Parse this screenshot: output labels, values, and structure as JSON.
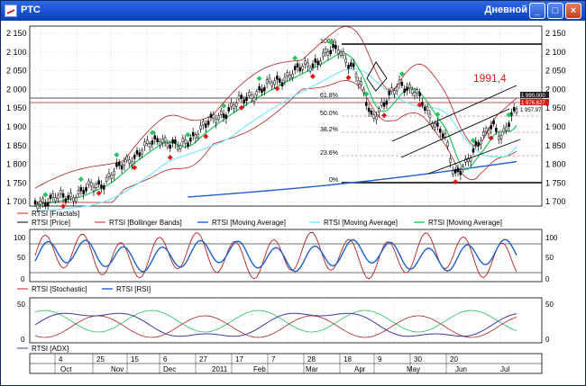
{
  "window": {
    "title": "РТС",
    "period_label": "Дневной",
    "minimize_label": "_",
    "maximize_label": "□",
    "close_label": "×"
  },
  "colors": {
    "title_bar": "#1d55d6",
    "price": "#000000",
    "bollinger": "#b22222",
    "ma_blue": "#1f5fd0",
    "ma_cyan": "#7fe6ff",
    "ma_green": "#22c55e",
    "fractal_up": "#22c55e",
    "fractal_down": "#dd1a1a",
    "stochastic": "#b22222",
    "rsi": "#1f5fd0",
    "adx": "#3a3aa0"
  },
  "main_panel": {
    "price_axis": [
      "2 150",
      "2 100",
      "2 050",
      "2 000",
      "1 950",
      "1 900",
      "1 850",
      "1 800",
      "1 750",
      "1 700"
    ],
    "fib_levels": [
      "100%",
      "61.8%",
      "50.0%",
      "38.2%",
      "23.6%",
      "0%"
    ],
    "annotation": "1991,4",
    "price_tags": [
      "1 990,000",
      "1 976,627",
      "1 957,97"
    ],
    "legend": [
      {
        "label": "RTSI [Fractals]",
        "color": "#dd1a1a"
      },
      {
        "label": "RTSI [Price]",
        "color": "#000000"
      },
      {
        "label": "RTSI [Bollinger Bands]",
        "color": "#b22222"
      },
      {
        "label": "RTSI [Moving Average]",
        "color": "#1f5fd0"
      },
      {
        "label": "RTSI [Moving Average]",
        "color": "#7fe6ff"
      },
      {
        "label": "RTSI [Moving Average]",
        "color": "#22c55e"
      }
    ]
  },
  "osc_panel": {
    "axis": [
      "100",
      "50",
      "0"
    ],
    "legend": [
      {
        "label": "RTSI [Stochastic]",
        "color": "#b22222"
      },
      {
        "label": "RTSI [RSI]",
        "color": "#1f5fd0"
      }
    ]
  },
  "adx_panel": {
    "axis": [
      "50",
      "0"
    ],
    "legend": [
      {
        "label": "RTSI [ADX]",
        "color": "#3a3aa0"
      }
    ]
  },
  "date_axis": {
    "days": [
      "4",
      "25",
      "15",
      "6",
      "27",
      "17",
      "7",
      "28",
      "18",
      "9",
      "30",
      "20"
    ],
    "months": [
      "Oct",
      "Nov",
      "Dec",
      "2011",
      "Feb",
      "Mar",
      "Apr",
      "May",
      "Jun",
      "Jul"
    ]
  }
}
